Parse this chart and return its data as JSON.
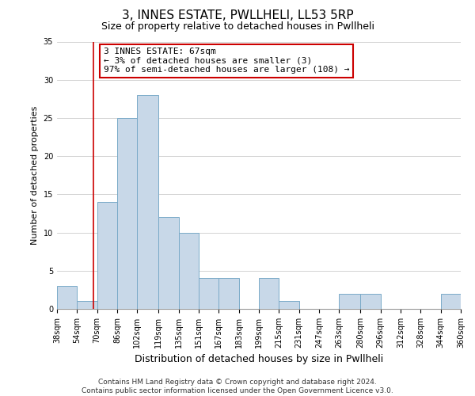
{
  "title": "3, INNES ESTATE, PWLLHELI, LL53 5RP",
  "subtitle": "Size of property relative to detached houses in Pwllheli",
  "xlabel": "Distribution of detached houses by size in Pwllheli",
  "ylabel": "Number of detached properties",
  "bin_edges": [
    38,
    54,
    70,
    86,
    102,
    119,
    135,
    151,
    167,
    183,
    199,
    215,
    231,
    247,
    263,
    280,
    296,
    312,
    328,
    344,
    360
  ],
  "bin_labels": [
    "38sqm",
    "54sqm",
    "70sqm",
    "86sqm",
    "102sqm",
    "119sqm",
    "135sqm",
    "151sqm",
    "167sqm",
    "183sqm",
    "199sqm",
    "215sqm",
    "231sqm",
    "247sqm",
    "263sqm",
    "280sqm",
    "296sqm",
    "312sqm",
    "328sqm",
    "344sqm",
    "360sqm"
  ],
  "counts": [
    3,
    1,
    14,
    25,
    28,
    12,
    10,
    4,
    4,
    0,
    4,
    1,
    0,
    0,
    2,
    2,
    0,
    0,
    0,
    2
  ],
  "bar_color": "#c8d8e8",
  "bar_edgecolor": "#7aaac8",
  "property_line_x": 67,
  "property_line_color": "#cc0000",
  "annotation_text": "3 INNES ESTATE: 67sqm\n← 3% of detached houses are smaller (3)\n97% of semi-detached houses are larger (108) →",
  "annotation_box_edgecolor": "#cc0000",
  "annotation_box_facecolor": "#ffffff",
  "ylim": [
    0,
    35
  ],
  "yticks": [
    0,
    5,
    10,
    15,
    20,
    25,
    30,
    35
  ],
  "footer_line1": "Contains HM Land Registry data © Crown copyright and database right 2024.",
  "footer_line2": "Contains public sector information licensed under the Open Government Licence v3.0.",
  "bg_color": "#ffffff",
  "grid_color": "#cccccc",
  "title_fontsize": 11,
  "subtitle_fontsize": 9,
  "ylabel_fontsize": 8,
  "xlabel_fontsize": 9,
  "tick_fontsize": 7,
  "annotation_fontsize": 8,
  "footer_fontsize": 6.5
}
